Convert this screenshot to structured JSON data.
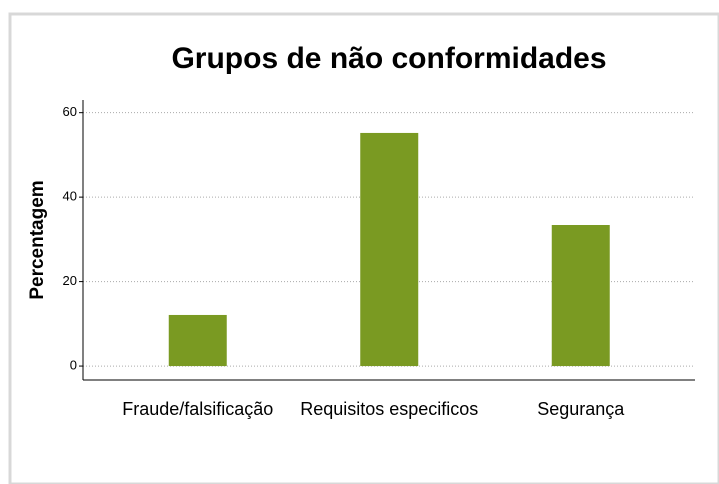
{
  "chart_data": {
    "type": "bar",
    "title": "Grupos de não conformidades",
    "y_label": "Percentagem",
    "categories": [
      "Fraude/falsificação",
      "Requisitos especificos",
      "Segurança"
    ],
    "values": [
      12.1,
      55.2,
      33.4
    ],
    "color": "#7a9a22",
    "ylim": [
      -3.3,
      63
    ],
    "yticks": [
      0,
      20,
      40,
      60
    ],
    "grid": true
  }
}
